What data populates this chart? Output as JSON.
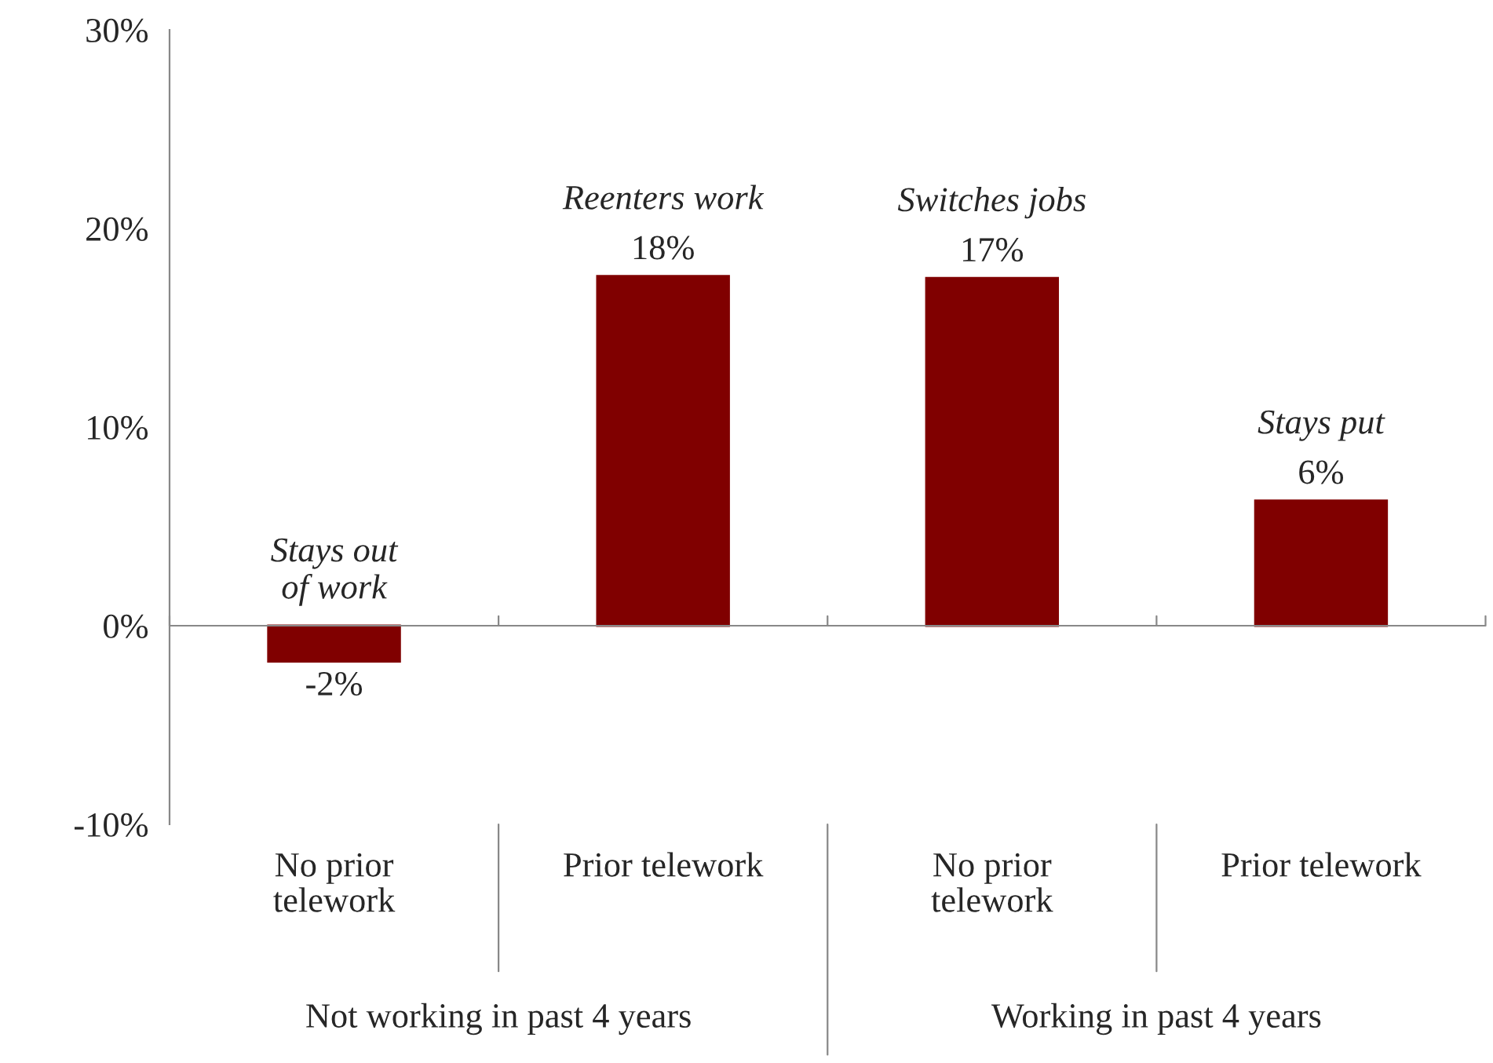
{
  "chart_data": {
    "type": "bar",
    "categories": [
      "No prior telework",
      "Prior telework",
      "No prior telework",
      "Prior telework"
    ],
    "values": [
      -1.8,
      17.6,
      17.5,
      6.3
    ],
    "colors": [
      "#800000",
      "#800000",
      "#800000",
      "#800000"
    ],
    "value_labels": [
      "-2%",
      "18%",
      "17%",
      "6%"
    ],
    "annotations": [
      "Stays out\nof work",
      "Reenters work",
      "Switches jobs",
      "Stays put",
      "Not working in past 4 years",
      "Working in past 4 years"
    ],
    "ylim": [
      -10,
      30
    ],
    "yticks": [
      {
        "value": -10,
        "label": "-10%"
      },
      {
        "value": 0,
        "label": "0%"
      },
      {
        "value": 10,
        "label": "10%"
      },
      {
        "value": 20,
        "label": "20%"
      },
      {
        "value": 30,
        "label": "30%"
      }
    ],
    "ref_lines": [
      {
        "axis": "y",
        "value": 0,
        "color": "#888888"
      }
    ],
    "grid": false
  }
}
